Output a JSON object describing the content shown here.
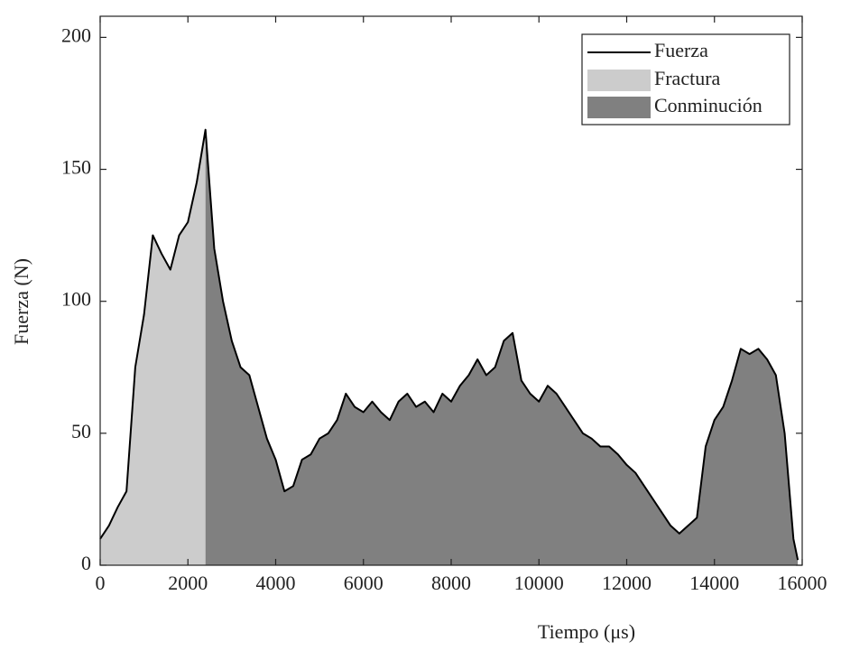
{
  "chart_data": {
    "type": "area",
    "xlabel": "Tiempo (μs)",
    "ylabel": "Fuerza (N)",
    "x": [
      0,
      200,
      400,
      600,
      800,
      1000,
      1200,
      1400,
      1600,
      1800,
      2000,
      2200,
      2400,
      2600,
      2800,
      3000,
      3200,
      3400,
      3600,
      3800,
      4000,
      4200,
      4400,
      4600,
      4800,
      5000,
      5200,
      5400,
      5600,
      5800,
      6000,
      6200,
      6400,
      6600,
      6800,
      7000,
      7200,
      7400,
      7600,
      7800,
      8000,
      8200,
      8400,
      8600,
      8800,
      9000,
      9200,
      9400,
      9600,
      9800,
      10000,
      10200,
      10400,
      10600,
      10800,
      11000,
      11200,
      11400,
      11600,
      11800,
      12000,
      12200,
      12400,
      12600,
      12800,
      13000,
      13200,
      13400,
      13600,
      13800,
      14000,
      14200,
      14400,
      14600,
      14800,
      15000,
      15200,
      15400,
      15600,
      15800,
      15900
    ],
    "series": [
      {
        "name": "Fuerza",
        "color": "#000000",
        "values": [
          10,
          15,
          22,
          28,
          75,
          95,
          125,
          118,
          112,
          125,
          130,
          145,
          165,
          120,
          100,
          85,
          75,
          72,
          60,
          48,
          40,
          28,
          30,
          40,
          42,
          48,
          50,
          55,
          65,
          60,
          58,
          62,
          58,
          55,
          62,
          65,
          60,
          62,
          58,
          65,
          62,
          68,
          72,
          78,
          72,
          75,
          85,
          88,
          70,
          65,
          62,
          68,
          65,
          60,
          55,
          50,
          48,
          45,
          45,
          42,
          38,
          35,
          30,
          25,
          20,
          15,
          12,
          15,
          18,
          45,
          55,
          60,
          70,
          82,
          80,
          82,
          78,
          72,
          50,
          10,
          2
        ]
      }
    ],
    "regions": [
      {
        "name": "Fractura",
        "color": "#cccccc",
        "xrange": [
          0,
          2400
        ]
      },
      {
        "name": "Conminución",
        "color": "#808080",
        "xrange": [
          2400,
          15900
        ]
      }
    ],
    "xlim": [
      0,
      16000
    ],
    "xticks": [
      0,
      2000,
      4000,
      6000,
      8000,
      10000,
      12000,
      14000,
      16000
    ],
    "ylim": [
      0,
      208
    ],
    "yticks": [
      0,
      50,
      100,
      150,
      200
    ],
    "legend": "upper right"
  }
}
